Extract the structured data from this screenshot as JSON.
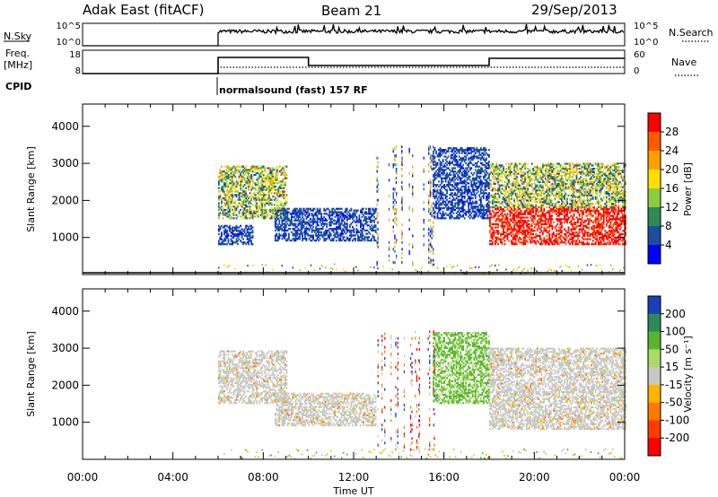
{
  "header": {
    "title": "Adak East (fitACF)",
    "beam": "Beam 21",
    "date": "29/Sep/2013"
  },
  "summary_panels": {
    "nsky_label": "N.Sky",
    "nsky_ticks": [
      "10^5",
      "10^0"
    ],
    "nsearch_label": "N.Search",
    "nsearch_ticks": [
      "10^5",
      "10^0"
    ],
    "freq_label_line1": "Freq.",
    "freq_label_line2": "[MHz]",
    "freq_ticks": [
      "18",
      "8"
    ],
    "nave_label": "Nave",
    "nave_ticks": [
      "60",
      "0"
    ],
    "cpid_label": "CPID",
    "cpid_text": "normalsound (fast) 157 RF"
  },
  "chart_data": [
    {
      "type": "heatmap",
      "panel": "power",
      "ylabel": "Slant Range [km]",
      "xlabel": "Time UT",
      "xlim_hours": [
        0,
        24
      ],
      "ylim_km": [
        0,
        4600
      ],
      "yticks": [
        "4000",
        "3000",
        "2000",
        "1000"
      ],
      "xticks": [
        "00:00",
        "04:00",
        "08:00",
        "12:00",
        "16:00",
        "20:00",
        "00:00"
      ],
      "colorbar": {
        "label": "Power [dB]",
        "ticks": [
          "28",
          "24",
          "20",
          "16",
          "12",
          "8",
          "4"
        ],
        "colors": [
          "#ff0000",
          "#ff5a00",
          "#ffa000",
          "#ffe000",
          "#8ccd3c",
          "#2e8a57",
          "#1a4fa0",
          "#0000ff"
        ]
      },
      "regions": [
        {
          "t0": 6.0,
          "t1": 9.0,
          "r0": 1500,
          "r1": 2900,
          "level": "medium"
        },
        {
          "t0": 6.0,
          "t1": 7.5,
          "r0": 800,
          "r1": 1300,
          "level": "weak"
        },
        {
          "t0": 8.5,
          "t1": 13.0,
          "r0": 900,
          "r1": 1800,
          "level": "weak"
        },
        {
          "t0": 15.5,
          "t1": 18.0,
          "r0": 1500,
          "r1": 3400,
          "level": "weak"
        },
        {
          "t0": 18.0,
          "t1": 24.0,
          "r0": 800,
          "r1": 1800,
          "level": "strong"
        },
        {
          "t0": 18.0,
          "t1": 24.0,
          "r0": 1800,
          "r1": 3000,
          "level": "medium"
        }
      ]
    },
    {
      "type": "heatmap",
      "panel": "velocity",
      "ylabel": "Slant Range [km]",
      "xlabel": "Time UT",
      "xlim_hours": [
        0,
        24
      ],
      "ylim_km": [
        0,
        4600
      ],
      "yticks": [
        "4000",
        "3000",
        "2000",
        "1000"
      ],
      "xticks": [
        "00:00",
        "04:00",
        "08:00",
        "12:00",
        "16:00",
        "20:00",
        "00:00"
      ],
      "colorbar": {
        "label": "Velocity [m s⁻¹]",
        "ticks": [
          "200",
          "100",
          "50",
          "15",
          "-15",
          "-50",
          "-100",
          "-200"
        ],
        "colors": [
          "#1a3fb8",
          "#2e8a57",
          "#5ab432",
          "#a8dc64",
          "#c8c8c8",
          "#ffb400",
          "#ff7800",
          "#ff3c00",
          "#ff0000"
        ]
      },
      "regions": [
        {
          "t0": 6.0,
          "t1": 9.0,
          "r0": 1500,
          "r1": 2900,
          "level": "near-zero"
        },
        {
          "t0": 8.5,
          "t1": 13.0,
          "r0": 900,
          "r1": 1800,
          "level": "near-zero"
        },
        {
          "t0": 15.5,
          "t1": 18.0,
          "r0": 1500,
          "r1": 3400,
          "level": "positive"
        },
        {
          "t0": 18.0,
          "t1": 24.0,
          "r0": 800,
          "r1": 1800,
          "level": "near-zero"
        },
        {
          "t0": 18.0,
          "t1": 24.0,
          "r0": 1800,
          "r1": 3000,
          "level": "near-zero"
        }
      ]
    }
  ]
}
